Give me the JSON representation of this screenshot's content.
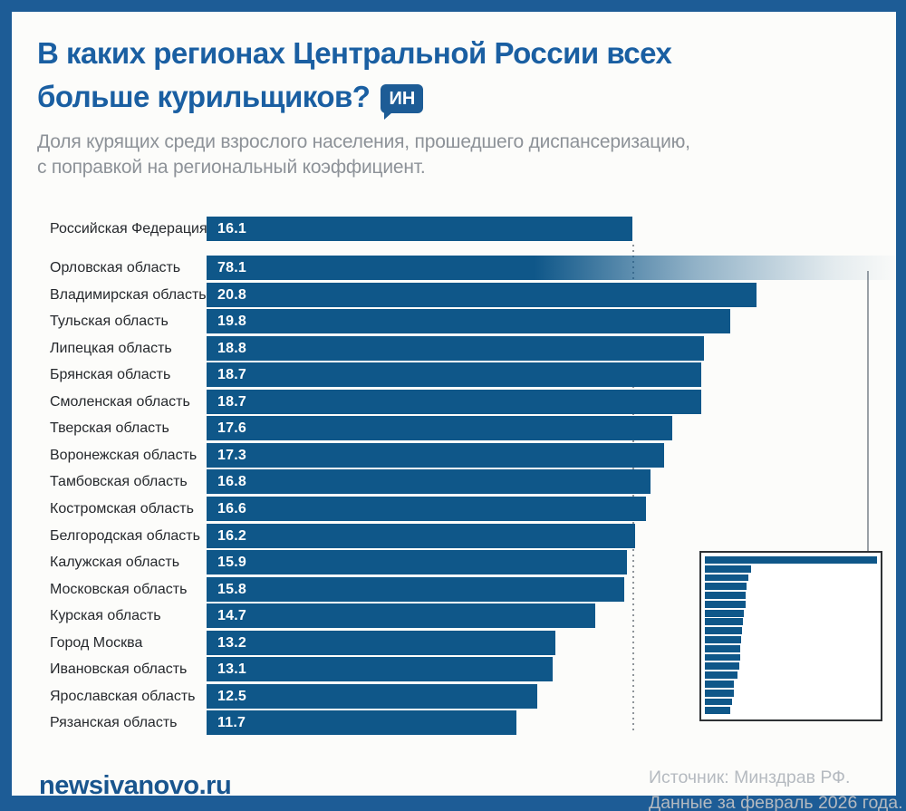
{
  "header": {
    "title_line1": "В каких регионах Центральной России всех",
    "title_line2": "больше курильщиков?",
    "badge_label": "ИН",
    "subtitle_line1": "Доля курящих среди взрослого населения, прошедшего диспансеризацию,",
    "subtitle_line2": "с поправкой на региональный коэффициент."
  },
  "chart_data": {
    "type": "bar",
    "orientation": "horizontal",
    "unit": "percent",
    "title": "В каких регионах Центральной России всех больше курильщиков?",
    "reference": {
      "label": "Российская Федерация",
      "value": 16.1
    },
    "categories": [
      "Орловская область",
      "Владимирская область",
      "Тульская область",
      "Липецкая область",
      "Брянская область",
      "Смоленская область",
      "Тверская область",
      "Воронежская область",
      "Тамбовская область",
      "Костромская область",
      "Белгородская область",
      "Калужская область",
      "Московская область",
      "Курская область",
      "Город Москва",
      "Ивановская область",
      "Ярославская область",
      "Рязанская область"
    ],
    "values": [
      78.1,
      20.8,
      19.8,
      18.8,
      18.7,
      18.7,
      17.6,
      17.3,
      16.8,
      16.6,
      16.2,
      15.9,
      15.8,
      14.7,
      13.2,
      13.1,
      12.5,
      11.7
    ],
    "overflow": {
      "label": "Орловская область",
      "value": 78.1,
      "note": "bar exceeds visible axis, fades out and is repeated to true scale in inset"
    },
    "axis_max_visible": 26.4,
    "inset_true_scale_max": 78.1,
    "grid": "off",
    "legend": "none"
  },
  "footer": {
    "site": "newsivanovo.ru",
    "source_line1": "Источник: Минздрав РФ.",
    "source_line2": "Данные за февраль 2026 года."
  },
  "colors": {
    "frame_blue": "#1d5c96",
    "title_blue": "#1a5fa2",
    "bar_blue": "#0f5789",
    "subtitle_gray": "#8d9298",
    "source_gray": "#b5bac0"
  }
}
